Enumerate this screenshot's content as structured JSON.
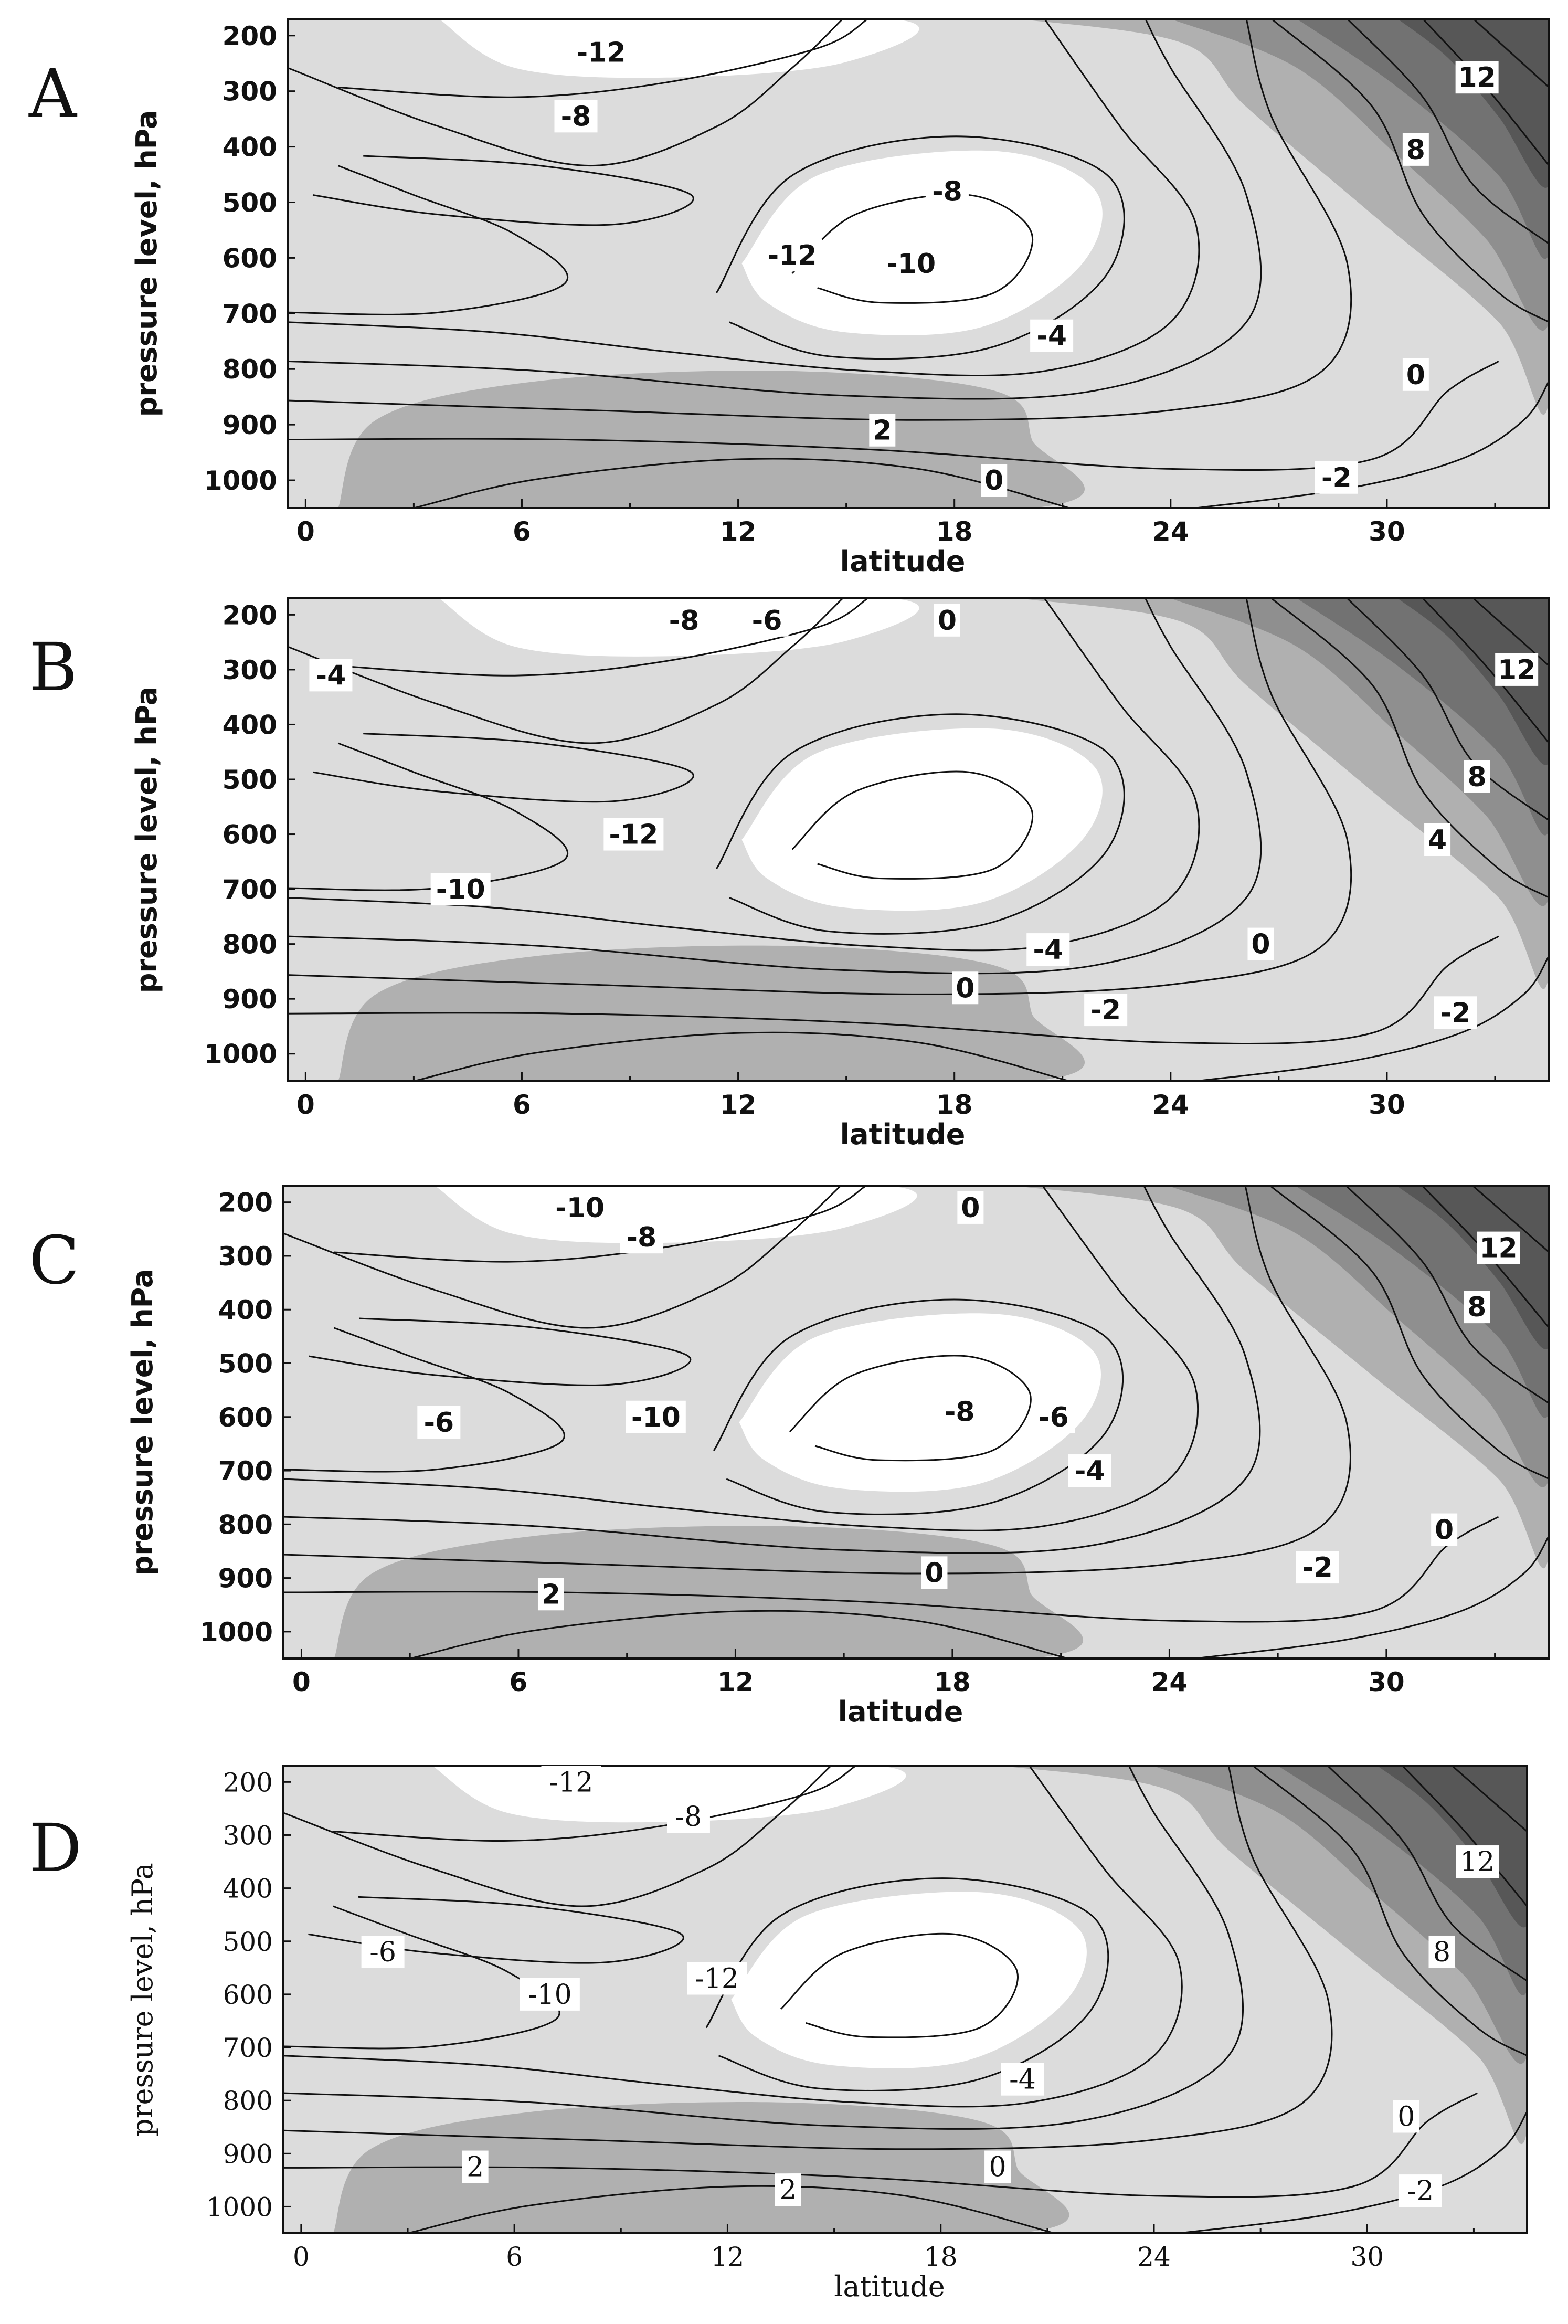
{
  "chart_data": [
    {
      "type": "contour",
      "panel": "A",
      "xlabel": "latitude",
      "ylabel": "pressure level, hPa",
      "x_ticks": [
        0,
        6,
        12,
        18,
        24,
        30
      ],
      "y_ticks": [
        200,
        300,
        400,
        500,
        600,
        700,
        800,
        900,
        1000
      ],
      "xlim": [
        -0.5,
        34.5
      ],
      "ylim": [
        1050,
        170
      ],
      "contour_labels": [
        {
          "text": "-12",
          "lat": 8.2,
          "p": 230
        },
        {
          "text": "-8",
          "lat": 7.5,
          "p": 345
        },
        {
          "text": "-8",
          "lat": 17.8,
          "p": 480
        },
        {
          "text": "-12",
          "lat": 13.5,
          "p": 595
        },
        {
          "text": "-10",
          "lat": 16.8,
          "p": 610
        },
        {
          "text": "-4",
          "lat": 20.7,
          "p": 740
        },
        {
          "text": "0",
          "lat": 30.8,
          "p": 810
        },
        {
          "text": "2",
          "lat": 16.0,
          "p": 910
        },
        {
          "text": "0",
          "lat": 19.1,
          "p": 1000
        },
        {
          "text": "-2",
          "lat": 28.6,
          "p": 995
        },
        {
          "text": "8",
          "lat": 30.8,
          "p": 405
        },
        {
          "text": "12",
          "lat": 32.5,
          "p": 275
        }
      ]
    },
    {
      "type": "contour",
      "panel": "B",
      "xlabel": "latitude",
      "ylabel": "pressure level, hPa",
      "x_ticks": [
        0,
        6,
        12,
        18,
        24,
        30
      ],
      "y_ticks": [
        200,
        300,
        400,
        500,
        600,
        700,
        800,
        900,
        1000
      ],
      "xlim": [
        -0.5,
        34.5
      ],
      "ylim": [
        1050,
        170
      ],
      "contour_labels": [
        {
          "text": "-8",
          "lat": 10.5,
          "p": 210
        },
        {
          "text": "-6",
          "lat": 12.8,
          "p": 210
        },
        {
          "text": "0",
          "lat": 17.8,
          "p": 210
        },
        {
          "text": "-4",
          "lat": 0.7,
          "p": 310
        },
        {
          "text": "-12",
          "lat": 9.1,
          "p": 600
        },
        {
          "text": "-10",
          "lat": 4.3,
          "p": 700
        },
        {
          "text": "-4",
          "lat": 20.6,
          "p": 810
        },
        {
          "text": "0",
          "lat": 26.5,
          "p": 800
        },
        {
          "text": "0",
          "lat": 18.3,
          "p": 880
        },
        {
          "text": "-2",
          "lat": 22.2,
          "p": 920
        },
        {
          "text": "-2",
          "lat": 31.9,
          "p": 925
        },
        {
          "text": "4",
          "lat": 31.4,
          "p": 610
        },
        {
          "text": "8",
          "lat": 32.5,
          "p": 495
        },
        {
          "text": "12",
          "lat": 33.6,
          "p": 300
        }
      ]
    },
    {
      "type": "contour",
      "panel": "C",
      "xlabel": "latitude",
      "ylabel": "pressure level, hPa",
      "x_ticks": [
        0,
        6,
        12,
        18,
        24,
        30
      ],
      "y_ticks": [
        200,
        300,
        400,
        500,
        600,
        700,
        800,
        900,
        1000
      ],
      "xlim": [
        -0.5,
        34.5
      ],
      "ylim": [
        1050,
        170
      ],
      "contour_labels": [
        {
          "text": "-10",
          "lat": 7.7,
          "p": 210
        },
        {
          "text": "-8",
          "lat": 9.4,
          "p": 265
        },
        {
          "text": "0",
          "lat": 18.5,
          "p": 210
        },
        {
          "text": "-6",
          "lat": 3.8,
          "p": 610
        },
        {
          "text": "-10",
          "lat": 9.8,
          "p": 600
        },
        {
          "text": "-8",
          "lat": 18.2,
          "p": 590
        },
        {
          "text": "-6",
          "lat": 20.8,
          "p": 600
        },
        {
          "text": "-4",
          "lat": 21.8,
          "p": 700
        },
        {
          "text": "0",
          "lat": 31.6,
          "p": 810
        },
        {
          "text": "-2",
          "lat": 28.1,
          "p": 880
        },
        {
          "text": "0",
          "lat": 17.5,
          "p": 890
        },
        {
          "text": "2",
          "lat": 6.9,
          "p": 930
        },
        {
          "text": "8",
          "lat": 32.5,
          "p": 395
        },
        {
          "text": "12",
          "lat": 33.1,
          "p": 285
        }
      ]
    },
    {
      "type": "contour",
      "panel": "D",
      "xlabel": "latitude",
      "ylabel": "pressure level, hPa",
      "x_ticks": [
        0,
        6,
        12,
        18,
        24,
        30
      ],
      "y_ticks": [
        200,
        300,
        400,
        500,
        600,
        700,
        800,
        900,
        1000
      ],
      "xlim": [
        -0.5,
        34.5
      ],
      "ylim": [
        1050,
        170
      ],
      "contour_labels": [
        {
          "text": "-12",
          "lat": 7.6,
          "p": 200
        },
        {
          "text": "-8",
          "lat": 10.9,
          "p": 265
        },
        {
          "text": "-6",
          "lat": 2.3,
          "p": 520
        },
        {
          "text": "-12",
          "lat": 11.7,
          "p": 570
        },
        {
          "text": "-10",
          "lat": 7.0,
          "p": 600
        },
        {
          "text": "-4",
          "lat": 20.3,
          "p": 760
        },
        {
          "text": "0",
          "lat": 31.1,
          "p": 830
        },
        {
          "text": "2",
          "lat": 4.9,
          "p": 925
        },
        {
          "text": "0",
          "lat": 19.6,
          "p": 925
        },
        {
          "text": "2",
          "lat": 13.7,
          "p": 968
        },
        {
          "text": "-2",
          "lat": 31.5,
          "p": 970
        },
        {
          "text": "8",
          "lat": 32.1,
          "p": 520
        },
        {
          "text": "12",
          "lat": 33.1,
          "p": 350
        }
      ]
    }
  ]
}
